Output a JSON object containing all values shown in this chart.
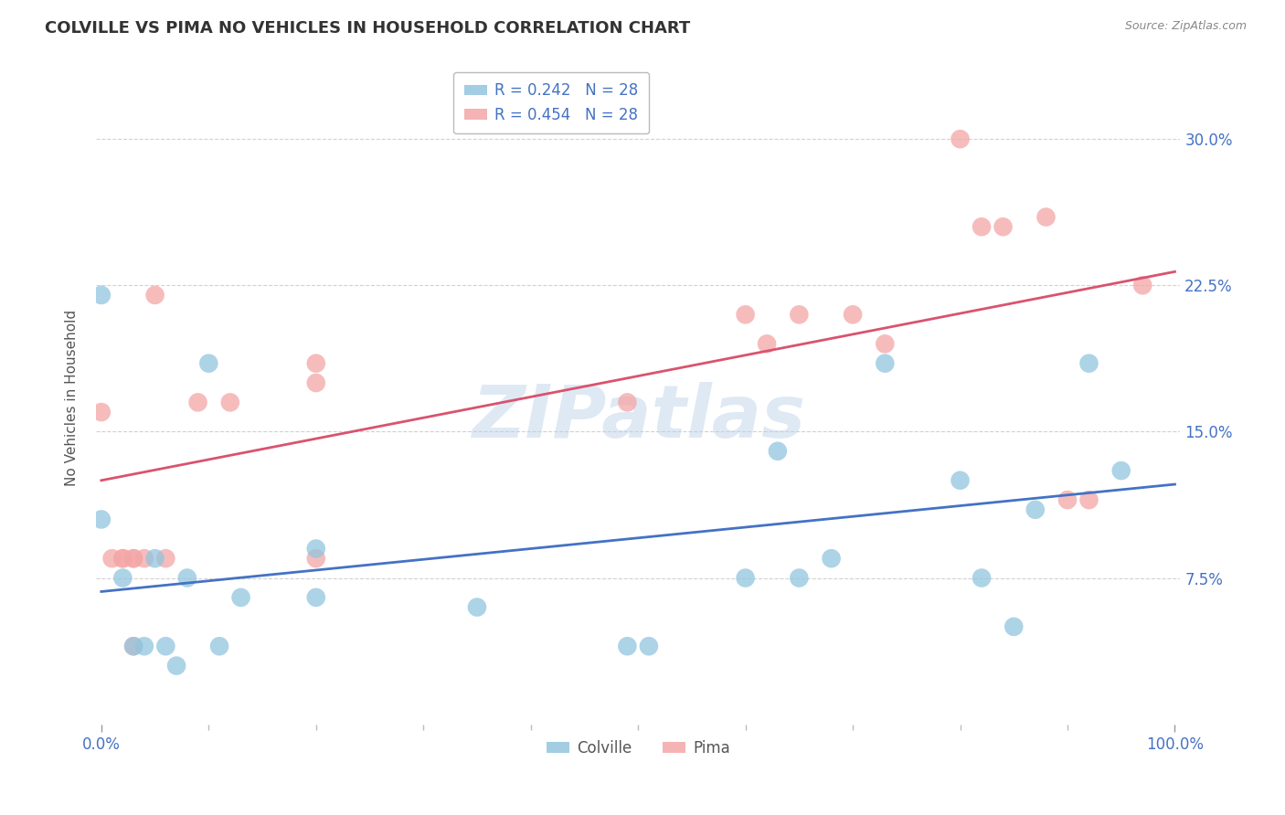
{
  "title": "COLVILLE VS PIMA NO VEHICLES IN HOUSEHOLD CORRELATION CHART",
  "source": "Source: ZipAtlas.com",
  "ylabel": "No Vehicles in Household",
  "ytick_labels": [
    "7.5%",
    "15.0%",
    "22.5%",
    "30.0%"
  ],
  "ytick_values": [
    0.075,
    0.15,
    0.225,
    0.3
  ],
  "xlim": [
    -0.005,
    1.005
  ],
  "ylim": [
    0.0,
    0.335
  ],
  "legend_colville": "R = 0.242   N = 28",
  "legend_pima": "R = 0.454   N = 28",
  "colville_color": "#92c5de",
  "pima_color": "#f4a6a6",
  "colville_line_color": "#4472c4",
  "pima_line_color": "#d9536e",
  "watermark": "ZIPatlas",
  "colville_x": [
    0.0,
    0.0,
    0.02,
    0.03,
    0.04,
    0.05,
    0.06,
    0.07,
    0.08,
    0.1,
    0.11,
    0.13,
    0.2,
    0.2,
    0.35,
    0.49,
    0.51,
    0.6,
    0.63,
    0.65,
    0.68,
    0.73,
    0.8,
    0.82,
    0.85,
    0.87,
    0.92,
    0.95
  ],
  "colville_y": [
    0.22,
    0.105,
    0.075,
    0.04,
    0.04,
    0.085,
    0.04,
    0.03,
    0.075,
    0.185,
    0.04,
    0.065,
    0.09,
    0.065,
    0.06,
    0.04,
    0.04,
    0.075,
    0.14,
    0.075,
    0.085,
    0.185,
    0.125,
    0.075,
    0.05,
    0.11,
    0.185,
    0.13
  ],
  "pima_x": [
    0.0,
    0.01,
    0.02,
    0.02,
    0.03,
    0.03,
    0.03,
    0.04,
    0.05,
    0.06,
    0.09,
    0.12,
    0.2,
    0.2,
    0.2,
    0.49,
    0.6,
    0.62,
    0.65,
    0.7,
    0.73,
    0.8,
    0.82,
    0.84,
    0.88,
    0.9,
    0.92,
    0.97
  ],
  "pima_y": [
    0.16,
    0.085,
    0.085,
    0.085,
    0.085,
    0.085,
    0.04,
    0.085,
    0.22,
    0.085,
    0.165,
    0.165,
    0.185,
    0.175,
    0.085,
    0.165,
    0.21,
    0.195,
    0.21,
    0.21,
    0.195,
    0.3,
    0.255,
    0.255,
    0.26,
    0.115,
    0.115,
    0.225
  ],
  "colville_slope": 0.055,
  "colville_intercept": 0.068,
  "pima_slope": 0.107,
  "pima_intercept": 0.125,
  "background_color": "#ffffff",
  "grid_color": "#cccccc",
  "scatter_size": 220,
  "title_fontsize": 13,
  "axis_label_fontsize": 11,
  "tick_fontsize": 11,
  "legend_fontsize": 12
}
